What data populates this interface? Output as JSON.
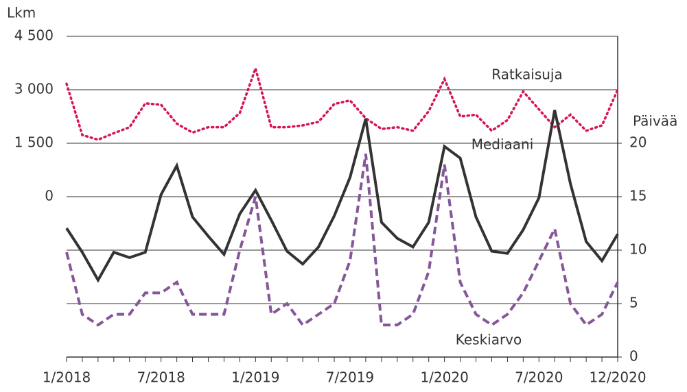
{
  "chart_data": {
    "type": "line",
    "ylabel": "Lkm",
    "y2label": "Päivää",
    "categories": [
      "1/2018",
      null,
      null,
      null,
      null,
      null,
      "7/2018",
      null,
      null,
      null,
      null,
      null,
      "1/2019",
      null,
      null,
      null,
      null,
      null,
      "7/2019",
      null,
      null,
      null,
      null,
      null,
      "1/2020",
      null,
      null,
      null,
      null,
      null,
      "7/2020",
      null,
      null,
      null,
      null,
      "12/2020"
    ],
    "ylim": [
      -4500,
      4500
    ],
    "yticks": [
      0,
      {
        "value": 1500,
        "label": "1 500"
      },
      {
        "value": 3000,
        "label": "3 000"
      },
      {
        "value": 4500,
        "label": "4 500"
      }
    ],
    "y2lim": [
      0,
      30
    ],
    "y2ticks": [
      0,
      5,
      10,
      15,
      20
    ],
    "grid": true,
    "series": [
      {
        "name": "Ratkaisuja",
        "color": "#d6145c",
        "style": "dotted",
        "values": [
          3170,
          1730,
          1600,
          1780,
          1950,
          2620,
          2580,
          2050,
          1800,
          1950,
          1950,
          2350,
          3600,
          1950,
          1950,
          2000,
          2100,
          2600,
          2700,
          2200,
          1900,
          1950,
          1850,
          2400,
          3300,
          2250,
          2300,
          1850,
          2150,
          2950,
          2450,
          1950,
          2300,
          1850,
          2000,
          3000
        ]
      },
      {
        "name": "Mediaani",
        "color": "#333333",
        "style": "solid",
        "axis": "y2",
        "values": [
          12.05,
          9.8,
          7.2,
          9.8,
          9.3,
          9.8,
          15.2,
          17.9,
          13.1,
          11.3,
          9.6,
          13.4,
          15.6,
          12.8,
          9.9,
          8.7,
          10.3,
          13.2,
          16.8,
          22.3,
          12.6,
          11.1,
          10.3,
          12.6,
          19.7,
          18.6,
          13.1,
          9.9,
          9.7,
          11.9,
          14.9,
          23.1,
          16.2,
          10.8,
          9.0,
          11.5
        ]
      },
      {
        "name": "Keskiarvo",
        "color": "#85579a",
        "style": "dashed",
        "axis": "y2",
        "values": [
          9.8,
          4,
          3,
          4,
          4,
          6,
          6,
          7,
          4,
          4,
          4,
          10,
          15,
          4,
          5,
          3,
          4,
          5,
          9,
          19,
          3,
          3,
          4,
          8,
          18,
          7,
          4,
          3,
          4,
          6,
          9,
          12,
          5,
          3,
          4,
          7
        ]
      }
    ]
  }
}
